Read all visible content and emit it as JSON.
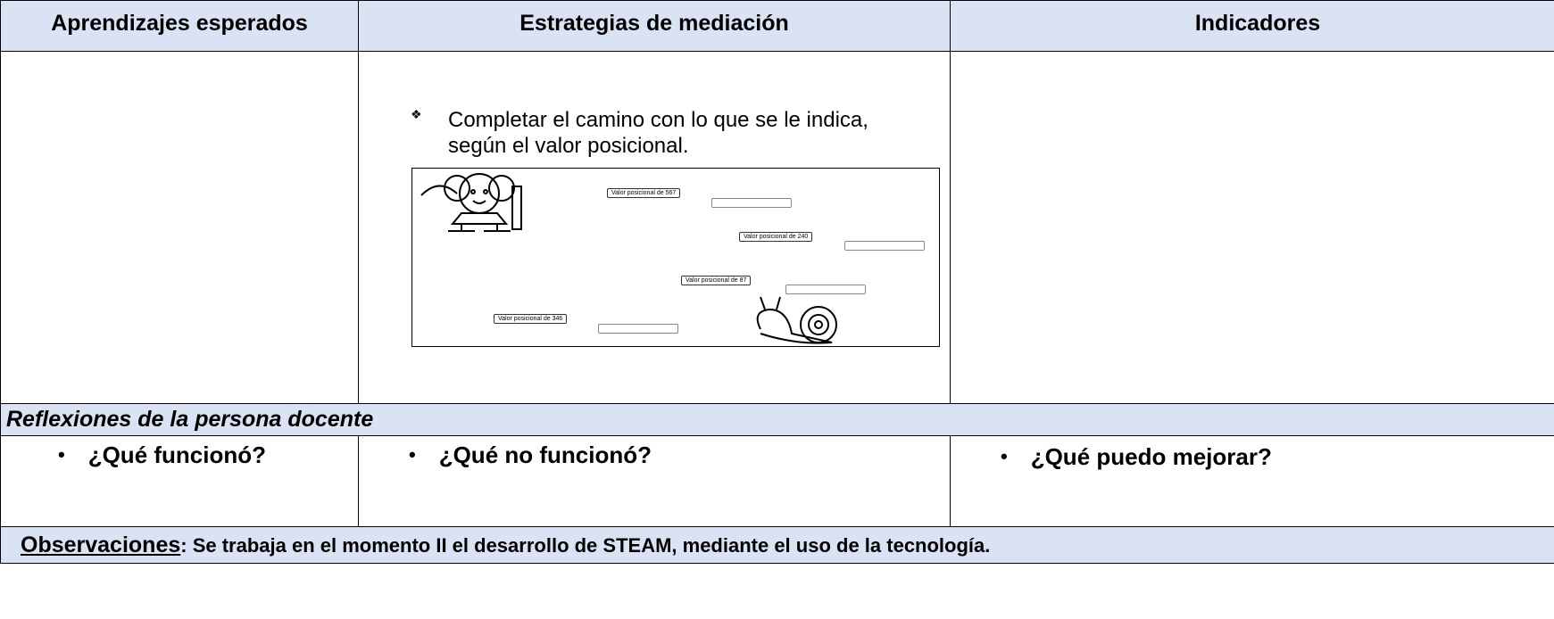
{
  "header": {
    "columns": [
      "Aprendizajes esperados",
      "Estrategias de mediación",
      "Indicadores"
    ]
  },
  "strategy": {
    "bullet": "Completar el camino con lo que se le indica, según el valor posicional.",
    "path_labels": [
      "Valor posicional de 567",
      "Valor posicional de 240",
      "Valor posicional de 87",
      "Valor posicional de 346"
    ]
  },
  "reflections": {
    "title": "Reflexiones de la persona docente",
    "questions": [
      "¿Qué funcionó?",
      "¿Qué no funcionó?",
      "¿Qué puedo mejorar?"
    ]
  },
  "observations": {
    "label": "Observaciones",
    "text": ": Se trabaja en el momento II el desarrollo de STEAM, mediante el uso de la tecnología."
  }
}
